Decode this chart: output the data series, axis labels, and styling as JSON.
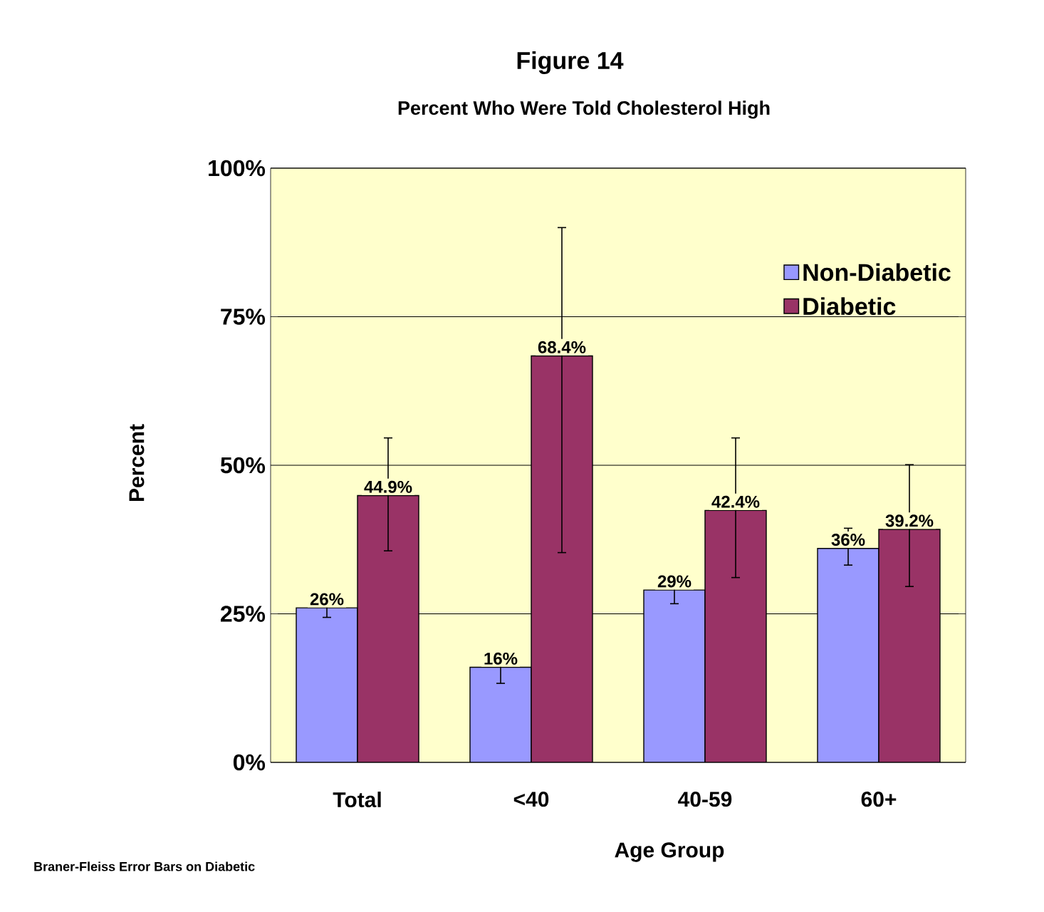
{
  "chart_data": {
    "type": "bar",
    "title": "Figure 14",
    "subtitle": "Percent Who Were Told Cholesterol High",
    "xlabel": "Age Group",
    "ylabel": "Percent",
    "categories": [
      "Total",
      "<40",
      "40-59",
      "60+"
    ],
    "series": [
      {
        "name": "Non-Diabetic",
        "color": "#9999ff",
        "values": [
          26,
          16,
          29,
          36
        ],
        "value_labels": [
          "26%",
          "16%",
          "29%",
          "36%"
        ],
        "errors": [
          [
            24.4,
            27.5
          ],
          [
            13.3,
            18.3
          ],
          [
            26.7,
            31.1
          ],
          [
            33.2,
            39.4
          ]
        ]
      },
      {
        "name": "Diabetic",
        "color": "#993366",
        "values": [
          44.9,
          68.4,
          42.4,
          39.2
        ],
        "value_labels": [
          "44.9%",
          "68.4%",
          "42.4%",
          "39.2%"
        ],
        "errors": [
          [
            35.6,
            54.6
          ],
          [
            35.3,
            90.0
          ],
          [
            31.1,
            54.6
          ],
          [
            29.6,
            50.1
          ]
        ]
      }
    ],
    "ylim": [
      0,
      100
    ],
    "yticks": [
      {
        "value": 0,
        "label": "0%"
      },
      {
        "value": 25,
        "label": "25%"
      },
      {
        "value": 50,
        "label": "50%"
      },
      {
        "value": 75,
        "label": "75%"
      },
      {
        "value": 100,
        "label": "100%"
      }
    ],
    "grid": "y",
    "legend": "top right",
    "annotations": [
      "Braner-Fleiss Error Bars on Diabetic"
    ]
  }
}
